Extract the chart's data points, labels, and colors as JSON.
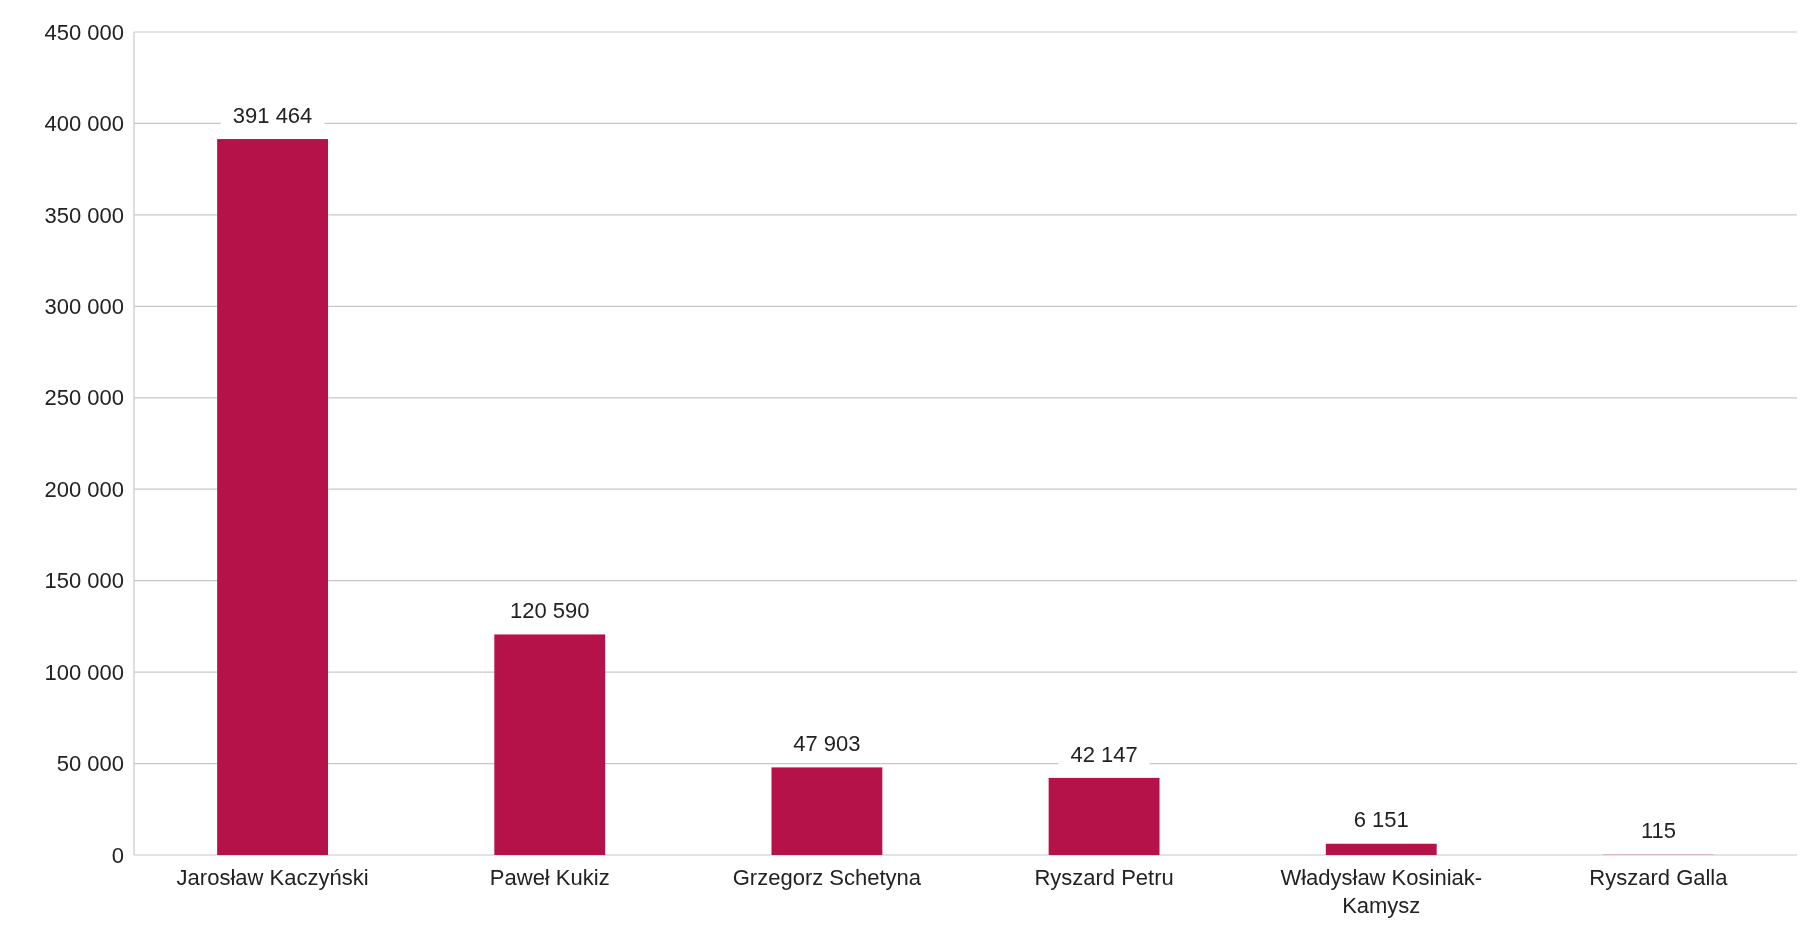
{
  "chart_data": {
    "type": "bar",
    "categories": [
      "Jarosław Kaczyński",
      "Paweł Kukiz",
      "Grzegorz Schetyna",
      "Ryszard Petru",
      "Władysław Kosiniak-Kamysz",
      "Ryszard Galla"
    ],
    "values": [
      391464,
      120590,
      47903,
      42147,
      6151,
      115
    ],
    "value_labels": [
      "391 464",
      "120 590",
      "47 903",
      "42 147",
      "6 151",
      "115"
    ],
    "color": "#b5124a",
    "ylim": [
      0,
      450000
    ],
    "yticks": [
      {
        "value": 0,
        "label": "0"
      },
      {
        "value": 50000,
        "label": "50 000"
      },
      {
        "value": 100000,
        "label": "100 000"
      },
      {
        "value": 150000,
        "label": "150 000"
      },
      {
        "value": 200000,
        "label": "200 000"
      },
      {
        "value": 250000,
        "label": "250 000"
      },
      {
        "value": 300000,
        "label": "300 000"
      },
      {
        "value": 350000,
        "label": "350 000"
      },
      {
        "value": 400000,
        "label": "400 000"
      },
      {
        "value": 450000,
        "label": "450 000"
      }
    ],
    "grid": "y"
  }
}
